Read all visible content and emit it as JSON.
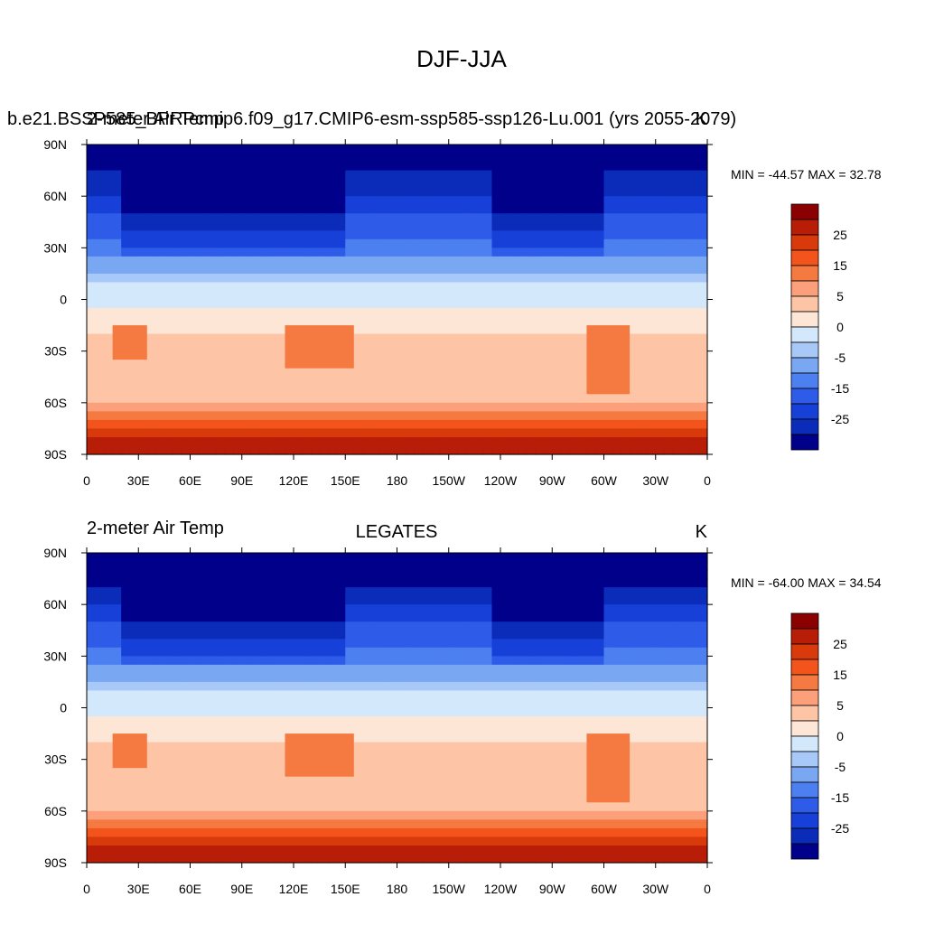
{
  "figure_title": "DJF-JJA",
  "colorbar": {
    "levels": [
      "25",
      "15",
      "5",
      "0",
      "-5",
      "-15",
      "-25"
    ],
    "colors": [
      "#8b0000",
      "#b81d08",
      "#d93a0c",
      "#f2541c",
      "#f57a42",
      "#fba07a",
      "#fdc5a6",
      "#fde6d6",
      "#d4e8fc",
      "#a8c8f8",
      "#7aa7f2",
      "#4c7ff0",
      "#2e5ce8",
      "#1740d9",
      "#0a2cb8",
      "#00008b"
    ]
  },
  "chart_data": [
    {
      "type": "heatmap",
      "left_title": "b.e21.BSSP585_BPRPcmip6.f09_g17.CMIP6-esm-ssp585-ssp126-Lu.001 (yrs 2055-2079)",
      "overlay_title": "2-meter Air Temp",
      "center_title": "",
      "units": "K",
      "stats": "MIN = -44.57 MAX =  32.78",
      "min": -44.57,
      "max": 32.78,
      "lat_ticks": [
        "90N",
        "60N",
        "30N",
        "0",
        "30S",
        "60S",
        "90S"
      ],
      "lon_ticks": [
        "0",
        "30E",
        "60E",
        "90E",
        "120E",
        "150E",
        "180",
        "150W",
        "120W",
        "90W",
        "60W",
        "30W",
        "0"
      ],
      "xlim": [
        0,
        360
      ],
      "ylim": [
        -90,
        90
      ]
    },
    {
      "type": "heatmap",
      "left_title": "2-meter Air Temp",
      "center_title": "LEGATES",
      "units": "K",
      "stats": "MIN = -64.00 MAX =  34.54",
      "min": -64.0,
      "max": 34.54,
      "lat_ticks": [
        "90N",
        "60N",
        "30N",
        "0",
        "30S",
        "60S",
        "90S"
      ],
      "lon_ticks": [
        "0",
        "30E",
        "60E",
        "90E",
        "120E",
        "150E",
        "180",
        "150W",
        "120W",
        "90W",
        "60W",
        "30W",
        "0"
      ],
      "xlim": [
        0,
        360
      ],
      "ylim": [
        -90,
        90
      ]
    }
  ]
}
